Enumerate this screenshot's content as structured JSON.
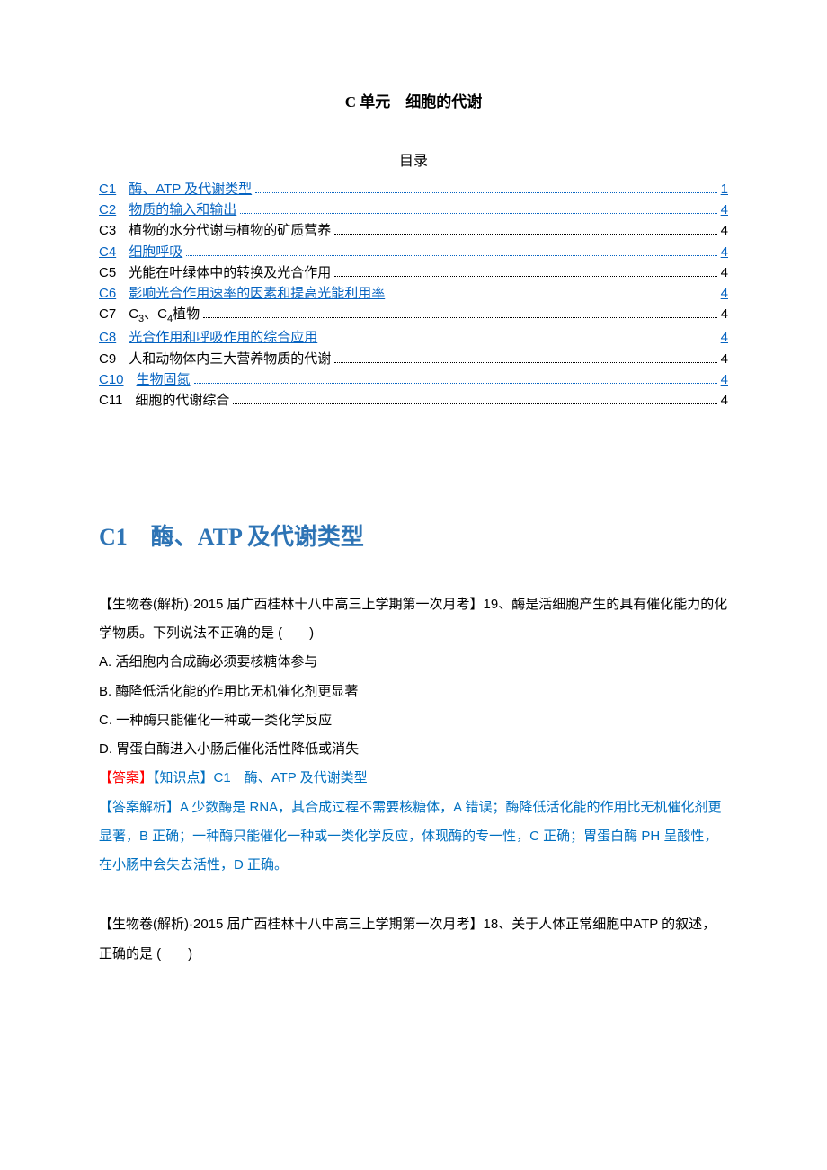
{
  "doc": {
    "title": "C 单元　细胞的代谢",
    "toc_heading": "目录"
  },
  "toc": [
    {
      "code": "C1",
      "label": "酶、ATP 及代谢类型",
      "page": "1",
      "is_link": true
    },
    {
      "code": "C2",
      "label": "物质的输入和输出",
      "page": "4",
      "is_link": true
    },
    {
      "code": "C3",
      "label": "植物的水分代谢与植物的矿质营养",
      "page": "4",
      "is_link": false
    },
    {
      "code": "C4",
      "label": "细胞呼吸",
      "page": "4",
      "is_link": true
    },
    {
      "code": "C5",
      "label": "光能在叶绿体中的转换及光合作用",
      "page": "4",
      "is_link": false
    },
    {
      "code": "C6",
      "label": "影响光合作用速率的因素和提高光能利用率",
      "page": "4",
      "is_link": true
    },
    {
      "code": "C7",
      "label": "C₃、C₄植物",
      "page": "4",
      "is_link": false
    },
    {
      "code": "C8",
      "label": "光合作用和呼吸作用的综合应用",
      "page": "4",
      "is_link": true
    },
    {
      "code": "C9",
      "label": "人和动物体内三大营养物质的代谢",
      "page": "4",
      "is_link": false
    },
    {
      "code": "C10",
      "label": "生物固氮",
      "page": "4",
      "is_link": true
    },
    {
      "code": "C11",
      "label": "细胞的代谢综合",
      "page": "4",
      "is_link": false
    }
  ],
  "section": {
    "heading": "C1　酶、ATP 及代谢类型"
  },
  "q19": {
    "stem": "【生物卷(解析)·2015 届广西桂林十八中高三上学期第一次月考】19、酶是活细胞产生的具有催化能力的化学物质。下列说法不正确的是 (　　)",
    "opt_a": "A.  活细胞内合成酶必须要核糖体参与",
    "opt_b": "B.  酶降低活化能的作用比无机催化剂更显著",
    "opt_c": "C.  一种酶只能催化一种或一类化学反应",
    "opt_d": "D.  胃蛋白酶进入小肠后催化活性降低或消失",
    "ans_key_prefix": "【答案】",
    "ans_key_rest": "【知识点】C1　酶、ATP 及代谢类型",
    "ans_expl": "【答案解析】A  少数酶是 RNA，其合成过程不需要核糖体，A 错误；酶降低活化能的作用比无机催化剂更显著，B 正确；一种酶只能催化一种或一类化学反应，体现酶的专一性，C 正确；胃蛋白酶 PH 呈酸性，在小肠中会失去活性，D 正确。"
  },
  "q18": {
    "stem": "【生物卷(解析)·2015 届广西桂林十八中高三上学期第一次月考】18、关于人体正常细胞中ATP 的叙述，正确的是 (　　)"
  },
  "colors": {
    "link": "#0563c1",
    "heading": "#2e74b5",
    "answer_blue": "#0070c0",
    "answer_red": "#ff0000",
    "text": "#000000",
    "background": "#ffffff"
  }
}
